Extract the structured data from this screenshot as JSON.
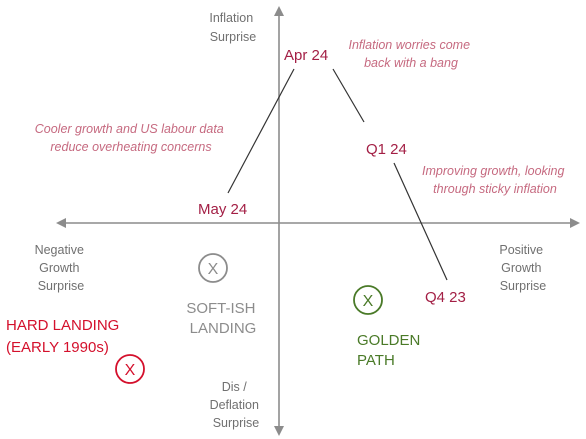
{
  "axes": {
    "y_top_label": [
      "Inflation",
      "Surprise"
    ],
    "y_bottom_label": [
      "Dis /",
      "Deflation",
      "Surprise"
    ],
    "x_left_label": [
      "Negative",
      "Growth",
      "Surprise"
    ],
    "x_right_label": [
      "Positive",
      "Growth",
      "Surprise"
    ]
  },
  "path_points": {
    "q4_23": "Q4 23",
    "q1_24": "Q1 24",
    "apr_24": "Apr 24",
    "may_24": "May 24"
  },
  "annotations": {
    "apr_24_note": [
      "Inflation worries come",
      "back with a bang"
    ],
    "q1_24_note": [
      "Improving growth, looking",
      "through sticky inflation"
    ],
    "may_24_note": [
      "Cooler growth and US labour data",
      "reduce overheating concerns"
    ]
  },
  "scenarios": {
    "soft_landing": [
      "SOFT-ISH",
      "LANDING"
    ],
    "golden_path": [
      "GOLDEN",
      "PATH"
    ],
    "hard_landing": [
      "HARD LANDING",
      "(EARLY 1990s)"
    ],
    "marker_glyph": "X"
  },
  "colors": {
    "axis": "#8c8c8c",
    "axis_text": "#707070",
    "point_label": "#a31f45",
    "annotation": "#c66a80",
    "path_line": "#333333",
    "soft_landing": "#8c8c8c",
    "golden_path": "#4a7a28",
    "hard_landing": "#d4102c"
  }
}
